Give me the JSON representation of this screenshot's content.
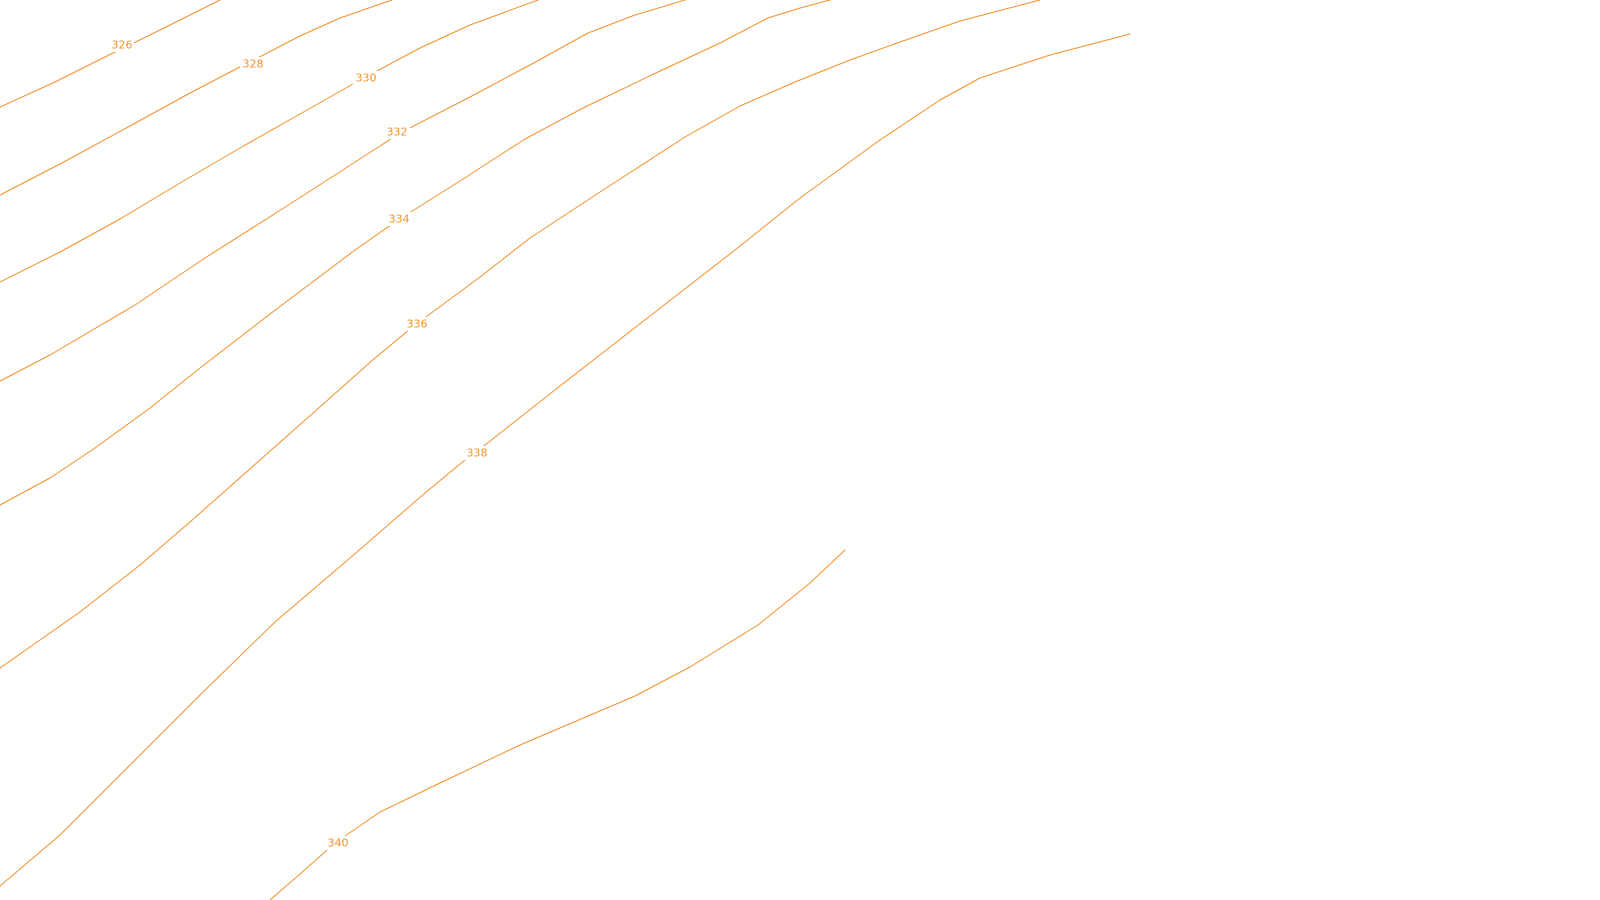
{
  "map": {
    "line_color": "#f4902a",
    "background": "#ffffff",
    "contours": [
      {
        "elevation": "326"
      },
      {
        "elevation": "328"
      },
      {
        "elevation": "330"
      },
      {
        "elevation": "332"
      },
      {
        "elevation": "334"
      },
      {
        "elevation": "336"
      },
      {
        "elevation": "338"
      },
      {
        "elevation": ""
      },
      {
        "elevation": "340"
      }
    ]
  }
}
